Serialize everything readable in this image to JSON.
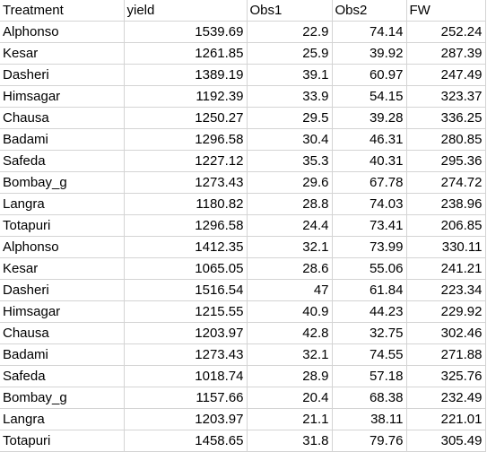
{
  "columns": [
    "Treatment",
    "yield",
    "Obs1",
    "Obs2",
    "FW"
  ],
  "rows": [
    [
      "Alphonso",
      "1539.69",
      "22.9",
      "74.14",
      "252.24"
    ],
    [
      "Kesar",
      "1261.85",
      "25.9",
      "39.92",
      "287.39"
    ],
    [
      "Dasheri",
      "1389.19",
      "39.1",
      "60.97",
      "247.49"
    ],
    [
      "Himsagar",
      "1192.39",
      "33.9",
      "54.15",
      "323.37"
    ],
    [
      "Chausa",
      "1250.27",
      "29.5",
      "39.28",
      "336.25"
    ],
    [
      "Badami",
      "1296.58",
      "30.4",
      "46.31",
      "280.85"
    ],
    [
      "Safeda",
      "1227.12",
      "35.3",
      "40.31",
      "295.36"
    ],
    [
      "Bombay_g",
      "1273.43",
      "29.6",
      "67.78",
      "274.72"
    ],
    [
      "Langra",
      "1180.82",
      "28.8",
      "74.03",
      "238.96"
    ],
    [
      "Totapuri",
      "1296.58",
      "24.4",
      "73.41",
      "206.85"
    ],
    [
      "Alphonso",
      "1412.35",
      "32.1",
      "73.99",
      "330.11"
    ],
    [
      "Kesar",
      "1065.05",
      "28.6",
      "55.06",
      "241.21"
    ],
    [
      "Dasheri",
      "1516.54",
      "47",
      "61.84",
      "223.34"
    ],
    [
      "Himsagar",
      "1215.55",
      "40.9",
      "44.23",
      "229.92"
    ],
    [
      "Chausa",
      "1203.97",
      "42.8",
      "32.75",
      "302.46"
    ],
    [
      "Badami",
      "1273.43",
      "32.1",
      "74.55",
      "271.88"
    ],
    [
      "Safeda",
      "1018.74",
      "28.9",
      "57.18",
      "325.76"
    ],
    [
      "Bombay_g",
      "1157.66",
      "20.4",
      "68.38",
      "232.49"
    ],
    [
      "Langra",
      "1203.97",
      "21.1",
      "38.11",
      "221.01"
    ],
    [
      "Totapuri",
      "1458.65",
      "31.8",
      "79.76",
      "305.49"
    ]
  ]
}
